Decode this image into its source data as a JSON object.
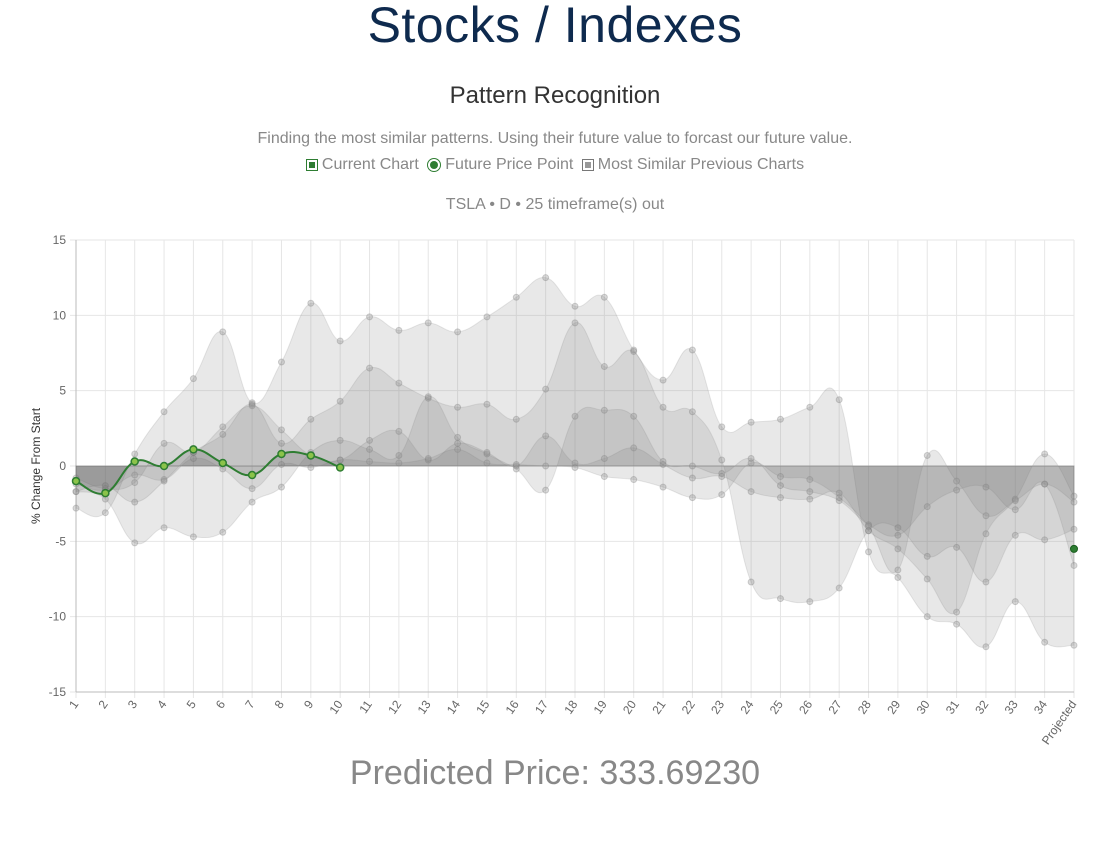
{
  "header": {
    "title": "Stocks / Indexes"
  },
  "section": {
    "title": "Pattern Recognition",
    "description": "Finding the most similar patterns. Using their future value to forcast our future value."
  },
  "legend": {
    "current": "Current Chart",
    "future": "Future Price Point",
    "similar": "Most Similar Previous Charts"
  },
  "subtitle": "TSLA • D • 25 timeframe(s) out",
  "prediction": {
    "label": "Predicted Price:",
    "value": "333.69230"
  },
  "colors": {
    "current": "#2e7d32",
    "band": "#a0a0a0",
    "grid": "#e6e6e6",
    "title": "#0e2a4e"
  },
  "chart_data": {
    "type": "area",
    "ylabel": "% Change From Start",
    "ylim": [
      -15,
      15
    ],
    "yticks": [
      15,
      10,
      5,
      0,
      -5,
      -10,
      -15
    ],
    "categories": [
      "1",
      "2",
      "3",
      "4",
      "5",
      "6",
      "7",
      "8",
      "9",
      "10",
      "11",
      "12",
      "13",
      "14",
      "15",
      "16",
      "17",
      "18",
      "19",
      "20",
      "21",
      "22",
      "23",
      "24",
      "25",
      "26",
      "27",
      "28",
      "29",
      "30",
      "31",
      "32",
      "33",
      "34",
      "Projected"
    ],
    "current": {
      "name": "Current Chart",
      "values": [
        -1.0,
        -1.8,
        0.3,
        0.0,
        1.1,
        0.2,
        -0.6,
        0.8,
        0.7,
        -0.1
      ]
    },
    "future_point": {
      "name": "Future Price Point",
      "x": "Projected",
      "value": -5.5
    },
    "similar": [
      {
        "values": [
          -2.8,
          -3.1,
          0.8,
          3.6,
          5.8,
          8.9,
          4.2,
          6.9,
          10.8,
          8.3,
          9.9,
          9.0,
          9.5,
          8.9,
          9.9,
          11.2,
          12.5,
          10.6,
          11.2,
          7.7,
          5.7,
          7.7,
          2.6,
          2.9,
          3.1,
          3.9,
          4.4,
          -5.7,
          -7.4,
          -10.0,
          -10.5,
          -12.0,
          -9.0,
          -11.7,
          -11.9
        ]
      },
      {
        "values": [
          -1.7,
          -1.3,
          -2.4,
          -1.0,
          0.9,
          2.1,
          4.1,
          1.5,
          3.1,
          4.3,
          6.5,
          5.5,
          4.5,
          3.9,
          4.1,
          3.1,
          5.1,
          9.5,
          6.6,
          7.6,
          3.9,
          3.6,
          0.4,
          -7.7,
          -8.8,
          -9.0,
          -8.1,
          -4.3,
          -4.1,
          -6.0,
          -5.4,
          -7.7,
          -4.6,
          -4.9,
          -4.2
        ]
      },
      {
        "values": [
          -1.7,
          -2.2,
          -5.1,
          -4.1,
          -4.7,
          -4.4,
          -2.4,
          -1.4,
          0.9,
          1.7,
          1.1,
          0.7,
          4.6,
          1.9,
          0.8,
          -0.2,
          -1.6,
          3.3,
          3.7,
          3.3,
          0.3,
          0.0,
          -0.5,
          0.5,
          -1.3,
          -1.7,
          -2.3,
          -3.9,
          -4.6,
          -2.7,
          -1.6,
          -1.4,
          -2.9,
          -1.2,
          -6.6
        ]
      },
      {
        "values": [
          -0.8,
          -1.5,
          -1.1,
          1.5,
          0.9,
          2.6,
          4.0,
          2.4,
          0.7,
          0.4,
          1.7,
          2.3,
          0.4,
          1.5,
          0.9,
          0.0,
          2.0,
          0.2,
          0.5,
          1.2,
          0.1,
          -0.8,
          -0.7,
          -1.7,
          -2.1,
          -2.2,
          -1.8,
          -4.3,
          -5.5,
          -7.5,
          -9.7,
          -4.5,
          -2.2,
          0.8,
          -2.0
        ]
      },
      {
        "values": [
          -1.2,
          -1.6,
          -0.6,
          -0.9,
          0.5,
          -0.2,
          -1.5,
          0.1,
          -0.1,
          0.4,
          0.3,
          0.2,
          0.5,
          1.1,
          0.2,
          0.1,
          0.0,
          -0.1,
          -0.7,
          -0.9,
          -1.4,
          -2.1,
          -1.9,
          0.2,
          -0.7,
          -0.9,
          -2.1,
          -4.0,
          -6.9,
          0.7,
          -1.0,
          -3.3,
          -2.3,
          -1.2,
          -2.4
        ]
      }
    ]
  }
}
